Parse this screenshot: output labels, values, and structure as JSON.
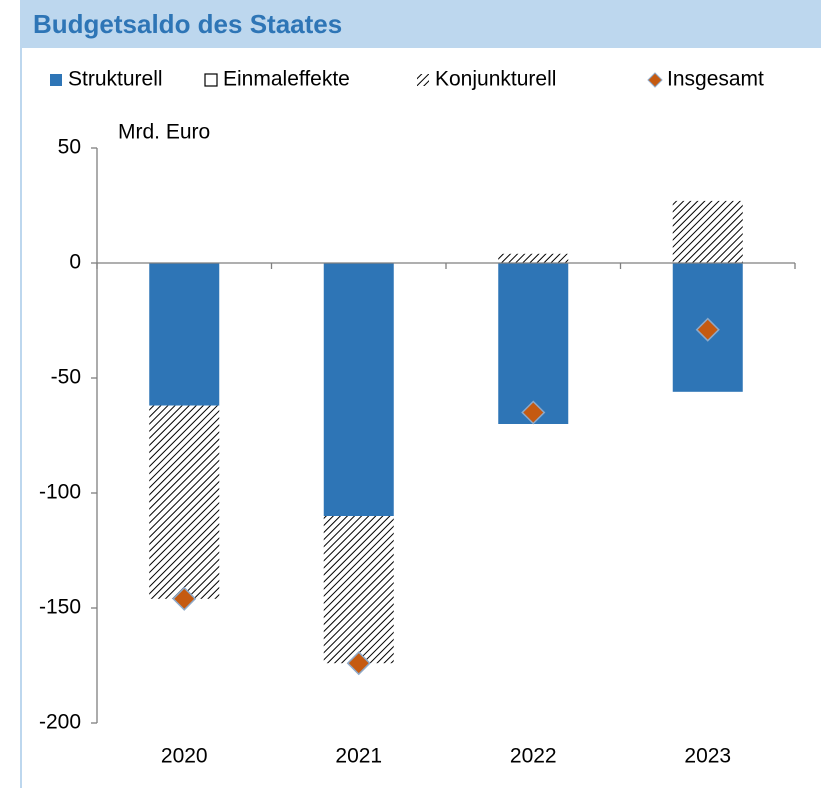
{
  "chart_data": {
    "type": "bar",
    "stacked": true,
    "title": "Budgetsaldo des Staates",
    "y_label": "Mrd. Euro",
    "categories": [
      "2020",
      "2021",
      "2022",
      "2023"
    ],
    "series": [
      {
        "name": "Strukturell",
        "type": "bar",
        "color": "#2e75b6",
        "values": [
          -62,
          -110,
          -70,
          -56
        ]
      },
      {
        "name": "Einmaleffekte",
        "type": "bar",
        "color": "#ffffff",
        "values": [
          0,
          0,
          0,
          0
        ]
      },
      {
        "name": "Konjunkturell",
        "type": "bar",
        "color": "#000000",
        "pattern": "hatch",
        "values": [
          -84,
          -64,
          4,
          27
        ]
      },
      {
        "name": "Insgesamt",
        "type": "marker",
        "color": "#c55a11",
        "values": [
          -146,
          -174,
          -65,
          -29
        ]
      }
    ],
    "ylim": [
      -200,
      50
    ],
    "yticks": [
      -200,
      -150,
      -100,
      -50,
      0,
      50
    ]
  }
}
